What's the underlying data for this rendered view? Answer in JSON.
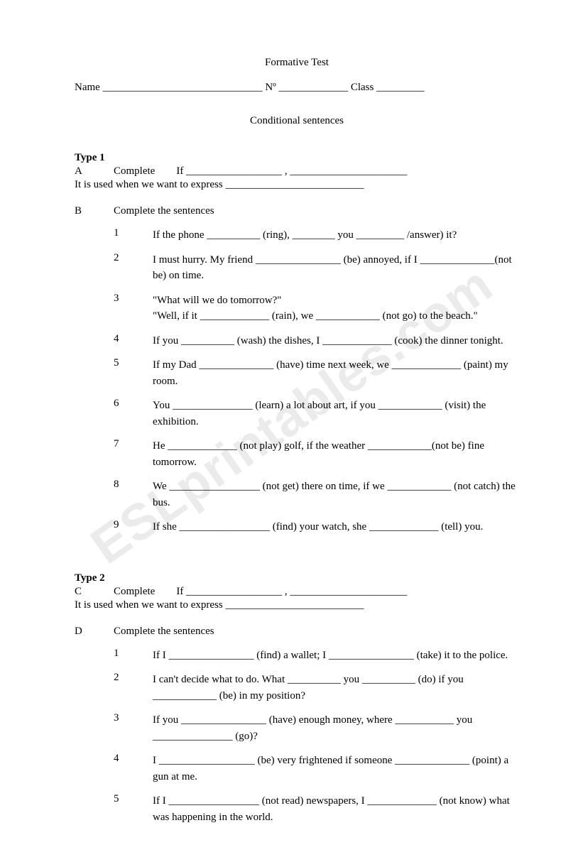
{
  "watermark": "ESLprintables.com",
  "title": "Formative Test",
  "header": {
    "name_label": "Name",
    "name_line": " ______________________________ ",
    "no_label": "Nº",
    "no_line": " _____________ ",
    "class_label": "Class",
    "class_line": " _________"
  },
  "subtitle": "Conditional sentences",
  "type1": {
    "heading": "Type 1",
    "A": {
      "letter": "A",
      "label": "Complete",
      "if_word": "If",
      "blank1": " __________________ ",
      "comma": ",",
      "blank2": " ______________________",
      "line2a": "It is used when we want to express",
      "blank3": " __________________________"
    },
    "B": {
      "letter": "B",
      "label": "Complete the sentences",
      "items": [
        {
          "n": "1",
          "text": "If the phone __________ (ring), ________ you _________ /answer) it?"
        },
        {
          "n": "2",
          "text": "I must hurry. My friend ________________ (be) annoyed, if I ______________(not be) on time."
        },
        {
          "n": "3",
          "text": "\"What will we do tomorrow?\"\n\"Well, if it _____________ (rain), we ____________ (not go) to the beach.\""
        },
        {
          "n": "4",
          "text": "If you __________ (wash) the dishes, I _____________ (cook) the dinner tonight."
        },
        {
          "n": "5",
          "text": "If my Dad ______________ (have) time next week, we _____________ (paint) my room."
        },
        {
          "n": "6",
          "text": "You _______________ (learn) a lot about art, if you ____________ (visit) the exhibition."
        },
        {
          "n": "7",
          "text": "He _____________ (not play) golf, if the weather ____________(not be) fine tomorrow."
        },
        {
          "n": "8",
          "text": "We _________________ (not get) there on time, if we ____________ (not catch) the bus."
        },
        {
          "n": "9",
          "text": "If she _________________ (find) your watch, she _____________ (tell) you."
        }
      ]
    }
  },
  "type2": {
    "heading": "Type 2",
    "C": {
      "letter": "C",
      "label": "Complete",
      "if_word": "If",
      "blank1": " __________________ ",
      "comma": ",",
      "blank2": " ______________________",
      "line2a": "It is used when we want to express",
      "blank3": " __________________________"
    },
    "D": {
      "letter": "D",
      "label": "Complete the sentences",
      "items": [
        {
          "n": "1",
          "text": "If I ________________ (find) a wallet; I ________________ (take) it to the police."
        },
        {
          "n": "2",
          "text": "I can't decide what to do. What __________ you __________ (do) if you ____________ (be) in my position?"
        },
        {
          "n": "3",
          "text": "If you ________________ (have) enough money, where ___________ you _______________ (go)?"
        },
        {
          "n": "4",
          "text": "I __________________ (be) very frightened if someone ______________ (point) a gun at me."
        },
        {
          "n": "5",
          "text": "If I _________________ (not read) newspapers, I _____________ (not know) what was happening in the world."
        }
      ]
    }
  }
}
